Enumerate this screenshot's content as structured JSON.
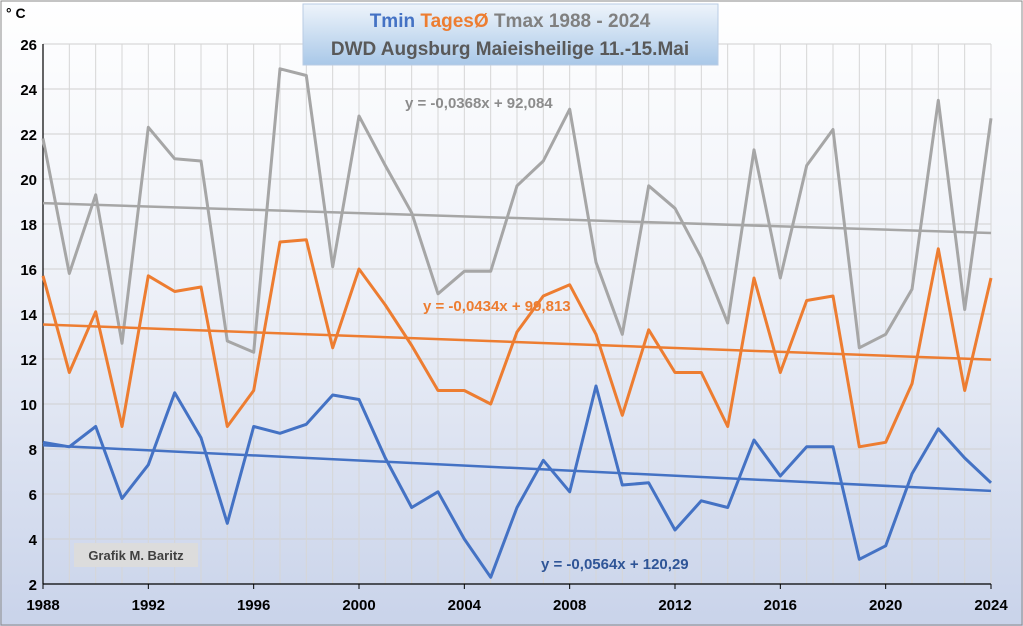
{
  "chart_data": {
    "type": "line",
    "title_parts": [
      {
        "text": "Tmin",
        "color": "#4472C4"
      },
      {
        "text": "TagesØ",
        "color": "#ED7D31"
      },
      {
        "text": "Tmax 1988 - 2024",
        "color": "#808080"
      }
    ],
    "subtitle": "DWD Augsburg Maieisheilige 11.-15.Mai",
    "unit_label": "° C",
    "credit": "Grafik M. Baritz",
    "x": [
      1988,
      1989,
      1990,
      1991,
      1992,
      1993,
      1994,
      1995,
      1996,
      1997,
      1998,
      1999,
      2000,
      2001,
      2002,
      2003,
      2004,
      2005,
      2006,
      2007,
      2008,
      2009,
      2010,
      2011,
      2012,
      2013,
      2014,
      2015,
      2016,
      2017,
      2018,
      2019,
      2020,
      2021,
      2022,
      2023,
      2024
    ],
    "xlim": [
      1988,
      2024
    ],
    "ylim": [
      2,
      26
    ],
    "x_ticks": [
      1988,
      1992,
      1996,
      2000,
      2004,
      2008,
      2012,
      2016,
      2020,
      2024
    ],
    "y_ticks": [
      2,
      4,
      6,
      8,
      10,
      12,
      14,
      16,
      18,
      20,
      22,
      24,
      26
    ],
    "grid": true,
    "series": [
      {
        "name": "Tmax",
        "color": "#A6A6A6",
        "values": [
          21.8,
          15.8,
          19.3,
          12.7,
          22.3,
          20.9,
          20.8,
          12.8,
          12.3,
          24.9,
          24.6,
          16.1,
          22.8,
          20.6,
          18.5,
          14.9,
          15.9,
          15.9,
          19.7,
          20.8,
          23.1,
          16.3,
          13.1,
          19.7,
          18.7,
          16.5,
          13.6,
          21.3,
          15.6,
          20.6,
          22.2,
          12.5,
          13.1,
          15.1,
          23.5,
          14.2,
          22.7
        ],
        "trend": {
          "slope": -0.0368,
          "intercept": 92.084,
          "label": "y = -0,0368x + 92,084"
        }
      },
      {
        "name": "TagesØ",
        "color": "#ED7D31",
        "values": [
          15.7,
          11.4,
          14.1,
          9.0,
          15.7,
          15.0,
          15.2,
          9.0,
          10.6,
          17.2,
          17.3,
          12.5,
          16.0,
          14.4,
          12.6,
          10.6,
          10.6,
          10.0,
          13.2,
          14.8,
          15.3,
          13.1,
          9.5,
          13.3,
          11.4,
          11.4,
          9.0,
          15.6,
          11.4,
          14.6,
          14.8,
          8.1,
          8.3,
          10.9,
          16.9,
          10.6,
          15.6
        ],
        "trend": {
          "slope": -0.0434,
          "intercept": 99.813,
          "label": "y = -0,0434x + 99,813"
        }
      },
      {
        "name": "Tmin",
        "color": "#4472C4",
        "values": [
          8.3,
          8.1,
          9.0,
          5.8,
          7.3,
          10.5,
          8.5,
          4.7,
          9.0,
          8.7,
          9.1,
          10.4,
          10.2,
          7.6,
          5.4,
          6.1,
          4.0,
          2.3,
          5.4,
          7.5,
          6.1,
          10.8,
          6.4,
          6.5,
          4.4,
          5.7,
          5.4,
          8.4,
          6.8,
          8.1,
          8.1,
          3.1,
          3.7,
          6.9,
          8.9,
          7.6,
          6.5
        ],
        "trend": {
          "slope": -0.0564,
          "intercept": 120.29,
          "label": "y = -0,0564x + 120,29"
        }
      }
    ]
  }
}
